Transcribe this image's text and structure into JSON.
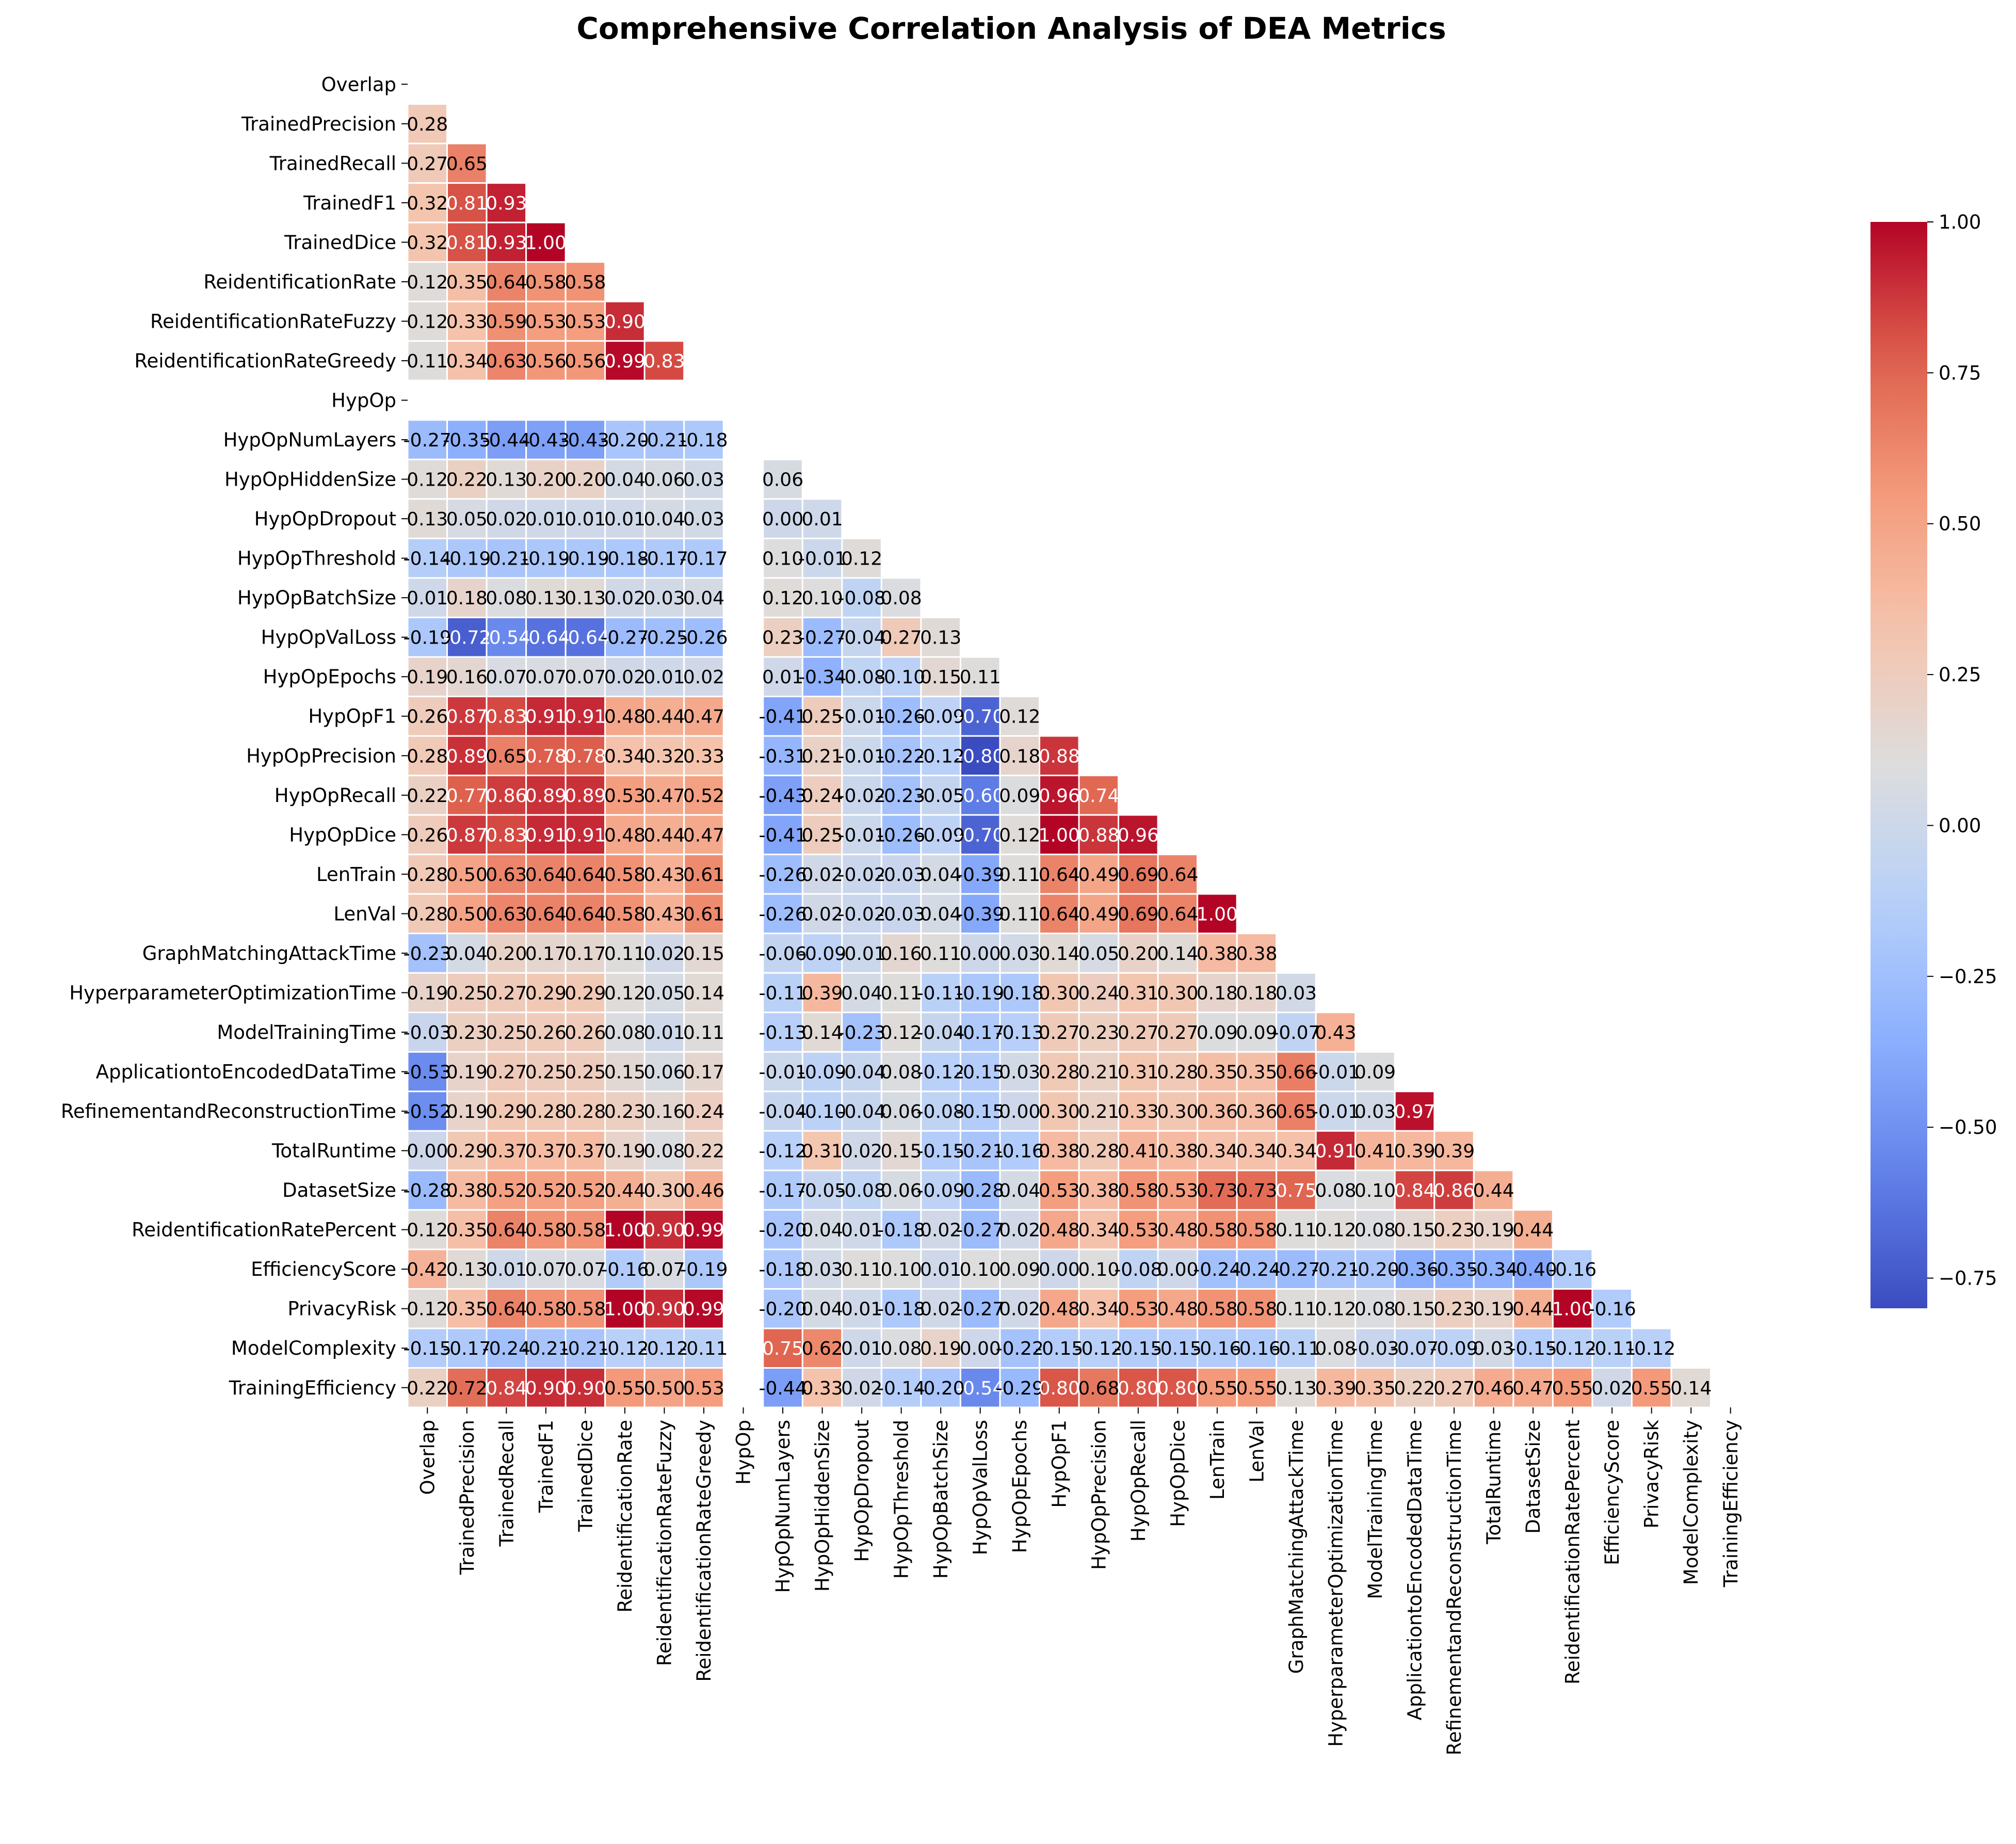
{
  "chart_data": {
    "type": "heatmap",
    "title": "Comprehensive Correlation Analysis of DEA Metrics",
    "xlabel": "",
    "ylabel": "",
    "variables": [
      "Overlap",
      "TrainedPrecision",
      "TrainedRecall",
      "TrainedF1",
      "TrainedDice",
      "ReidentificationRate",
      "ReidentificationRateFuzzy",
      "ReidentificationRateGreedy",
      "HypOp",
      "HypOpNumLayers",
      "HypOpHiddenSize",
      "HypOpDropout",
      "HypOpThreshold",
      "HypOpBatchSize",
      "HypOpValLoss",
      "HypOpEpochs",
      "HypOpF1",
      "HypOpPrecision",
      "HypOpRecall",
      "HypOpDice",
      "LenTrain",
      "LenVal",
      "GraphMatchingAttackTime",
      "HyperparameterOptimizationTime",
      "ModelTrainingTime",
      "ApplicationtoEncodedDataTime",
      "RefinementandReconstructionTime",
      "TotalRuntime",
      "DatasetSize",
      "ReidentificationRatePercent",
      "EfficiencyScore",
      "PrivacyRisk",
      "ModelComplexity",
      "TrainingEfficiency"
    ],
    "mask": "upper triangle including diagonal",
    "lower_triangle_rows": [
      [],
      [
        0.28
      ],
      [
        0.27,
        0.65
      ],
      [
        0.32,
        0.81,
        0.93
      ],
      [
        0.32,
        0.81,
        0.93,
        1.0
      ],
      [
        0.12,
        0.35,
        0.64,
        0.58,
        0.58
      ],
      [
        0.12,
        0.33,
        0.59,
        0.53,
        0.53,
        0.9
      ],
      [
        0.11,
        0.34,
        0.63,
        0.56,
        0.56,
        0.99,
        0.83
      ],
      [
        null,
        null,
        null,
        null,
        null,
        null,
        null,
        null
      ],
      [
        -0.27,
        -0.35,
        -0.44,
        -0.43,
        -0.43,
        -0.2,
        -0.21,
        -0.18,
        null
      ],
      [
        0.12,
        0.22,
        0.13,
        0.2,
        0.2,
        0.04,
        0.06,
        0.03,
        null,
        0.06
      ],
      [
        0.13,
        0.05,
        0.02,
        0.01,
        0.01,
        0.01,
        0.04,
        0.03,
        null,
        0.0,
        0.01
      ],
      [
        -0.14,
        -0.19,
        -0.21,
        -0.19,
        -0.19,
        -0.18,
        -0.17,
        -0.17,
        null,
        0.1,
        -0.01,
        0.12
      ],
      [
        0.01,
        0.18,
        0.08,
        0.13,
        0.13,
        0.02,
        0.03,
        0.04,
        null,
        0.12,
        0.1,
        -0.08,
        0.08
      ],
      [
        -0.19,
        -0.72,
        -0.54,
        -0.64,
        -0.64,
        -0.27,
        -0.25,
        -0.26,
        null,
        0.23,
        -0.27,
        -0.04,
        0.27,
        0.13
      ],
      [
        0.19,
        0.16,
        0.07,
        0.07,
        0.07,
        0.02,
        0.01,
        0.02,
        null,
        0.01,
        -0.34,
        -0.08,
        -0.1,
        0.15,
        0.11
      ],
      [
        0.26,
        0.87,
        0.83,
        0.91,
        0.91,
        0.48,
        0.44,
        0.47,
        null,
        -0.41,
        0.25,
        -0.01,
        -0.26,
        -0.09,
        -0.7,
        0.12
      ],
      [
        0.28,
        0.89,
        0.65,
        0.78,
        0.78,
        0.34,
        0.32,
        0.33,
        null,
        -0.31,
        0.21,
        -0.01,
        -0.22,
        -0.12,
        -0.8,
        0.18,
        0.88
      ],
      [
        0.22,
        0.77,
        0.86,
        0.89,
        0.89,
        0.53,
        0.47,
        0.52,
        null,
        -0.43,
        0.24,
        -0.02,
        -0.23,
        -0.05,
        -0.6,
        0.09,
        0.96,
        0.74
      ],
      [
        0.26,
        0.87,
        0.83,
        0.91,
        0.91,
        0.48,
        0.44,
        0.47,
        null,
        -0.41,
        0.25,
        -0.01,
        -0.26,
        -0.09,
        -0.7,
        0.12,
        1.0,
        0.88,
        0.96
      ],
      [
        0.28,
        0.5,
        0.63,
        0.64,
        0.64,
        0.58,
        0.43,
        0.61,
        null,
        -0.26,
        0.02,
        -0.02,
        -0.03,
        0.04,
        -0.39,
        0.11,
        0.64,
        0.49,
        0.69,
        0.64
      ],
      [
        0.28,
        0.5,
        0.63,
        0.64,
        0.64,
        0.58,
        0.43,
        0.61,
        null,
        -0.26,
        0.02,
        -0.02,
        -0.03,
        0.04,
        -0.39,
        0.11,
        0.64,
        0.49,
        0.69,
        0.64,
        1.0
      ],
      [
        -0.23,
        0.04,
        0.2,
        0.17,
        0.17,
        0.11,
        0.02,
        0.15,
        null,
        -0.06,
        -0.09,
        -0.01,
        0.16,
        0.11,
        0.0,
        0.03,
        0.14,
        0.05,
        0.2,
        0.14,
        0.38,
        0.38
      ],
      [
        0.19,
        0.25,
        0.27,
        0.29,
        0.29,
        0.12,
        0.05,
        0.14,
        null,
        -0.11,
        0.39,
        0.04,
        0.11,
        -0.11,
        -0.19,
        -0.18,
        0.3,
        0.24,
        0.31,
        0.3,
        0.18,
        0.18,
        0.03
      ],
      [
        -0.03,
        0.23,
        0.25,
        0.26,
        0.26,
        0.08,
        0.01,
        0.11,
        null,
        -0.13,
        0.14,
        -0.23,
        0.12,
        -0.04,
        -0.17,
        -0.13,
        0.27,
        0.23,
        0.27,
        0.27,
        0.09,
        0.09,
        -0.07,
        0.43
      ],
      [
        -0.53,
        0.19,
        0.27,
        0.25,
        0.25,
        0.15,
        0.06,
        0.17,
        null,
        -0.01,
        -0.09,
        -0.04,
        0.08,
        -0.12,
        -0.15,
        0.03,
        0.28,
        0.21,
        0.31,
        0.28,
        0.35,
        0.35,
        0.66,
        -0.01,
        0.09
      ],
      [
        -0.52,
        0.19,
        0.29,
        0.28,
        0.28,
        0.23,
        0.16,
        0.24,
        null,
        -0.04,
        -0.1,
        -0.04,
        0.06,
        -0.08,
        -0.15,
        0.0,
        0.3,
        0.21,
        0.33,
        0.3,
        0.36,
        0.36,
        0.65,
        -0.01,
        0.03,
        0.97
      ],
      [
        -0.0,
        0.29,
        0.37,
        0.37,
        0.37,
        0.19,
        0.08,
        0.22,
        null,
        -0.12,
        0.31,
        0.02,
        0.15,
        -0.15,
        -0.21,
        -0.16,
        0.38,
        0.28,
        0.41,
        0.38,
        0.34,
        0.34,
        0.34,
        0.91,
        0.41,
        0.39,
        0.39
      ],
      [
        -0.28,
        0.38,
        0.52,
        0.52,
        0.52,
        0.44,
        0.3,
        0.46,
        null,
        -0.17,
        -0.05,
        -0.08,
        0.06,
        -0.09,
        -0.28,
        0.04,
        0.53,
        0.38,
        0.58,
        0.53,
        0.73,
        0.73,
        0.75,
        0.08,
        0.1,
        0.84,
        0.86,
        0.44
      ],
      [
        0.12,
        0.35,
        0.64,
        0.58,
        0.58,
        1.0,
        0.9,
        0.99,
        null,
        -0.2,
        0.04,
        0.01,
        -0.18,
        0.02,
        -0.27,
        0.02,
        0.48,
        0.34,
        0.53,
        0.48,
        0.58,
        0.58,
        0.11,
        0.12,
        0.08,
        0.15,
        0.23,
        0.19,
        0.44
      ],
      [
        0.42,
        0.13,
        0.01,
        0.07,
        0.07,
        -0.16,
        0.07,
        -0.19,
        null,
        -0.18,
        0.03,
        0.11,
        0.1,
        0.01,
        0.1,
        0.09,
        0.0,
        0.1,
        -0.08,
        0.0,
        -0.24,
        -0.24,
        -0.27,
        -0.21,
        -0.2,
        -0.36,
        -0.35,
        -0.34,
        -0.4,
        -0.16
      ],
      [
        0.12,
        0.35,
        0.64,
        0.58,
        0.58,
        1.0,
        0.9,
        0.99,
        null,
        -0.2,
        0.04,
        0.01,
        -0.18,
        0.02,
        -0.27,
        0.02,
        0.48,
        0.34,
        0.53,
        0.48,
        0.58,
        0.58,
        0.11,
        0.12,
        0.08,
        0.15,
        0.23,
        0.19,
        0.44,
        1.0,
        -0.16
      ],
      [
        -0.15,
        -0.17,
        -0.24,
        -0.21,
        -0.21,
        -0.12,
        -0.12,
        -0.11,
        null,
        0.75,
        0.62,
        0.01,
        0.08,
        0.19,
        0.0,
        -0.22,
        -0.15,
        -0.12,
        -0.15,
        -0.15,
        -0.16,
        -0.16,
        -0.11,
        0.08,
        -0.03,
        -0.07,
        -0.09,
        0.03,
        -0.15,
        -0.12,
        -0.11,
        -0.12
      ],
      [
        0.22,
        0.72,
        0.84,
        0.9,
        0.9,
        0.55,
        0.5,
        0.53,
        null,
        -0.44,
        0.33,
        0.02,
        -0.14,
        -0.2,
        -0.54,
        -0.29,
        0.8,
        0.68,
        0.8,
        0.8,
        0.55,
        0.55,
        0.13,
        0.39,
        0.35,
        0.22,
        0.27,
        0.46,
        0.47,
        0.55,
        0.02,
        0.55,
        0.14
      ]
    ],
    "value_format": "two decimals",
    "colormap": "coolwarm",
    "color_range": [
      -0.8,
      1.0
    ],
    "colorbar_ticks": [
      "1.00",
      "0.75",
      "0.50",
      "0.25",
      "0.00",
      "−0.25",
      "−0.50",
      "−0.75"
    ],
    "colorbar_position": "right"
  }
}
